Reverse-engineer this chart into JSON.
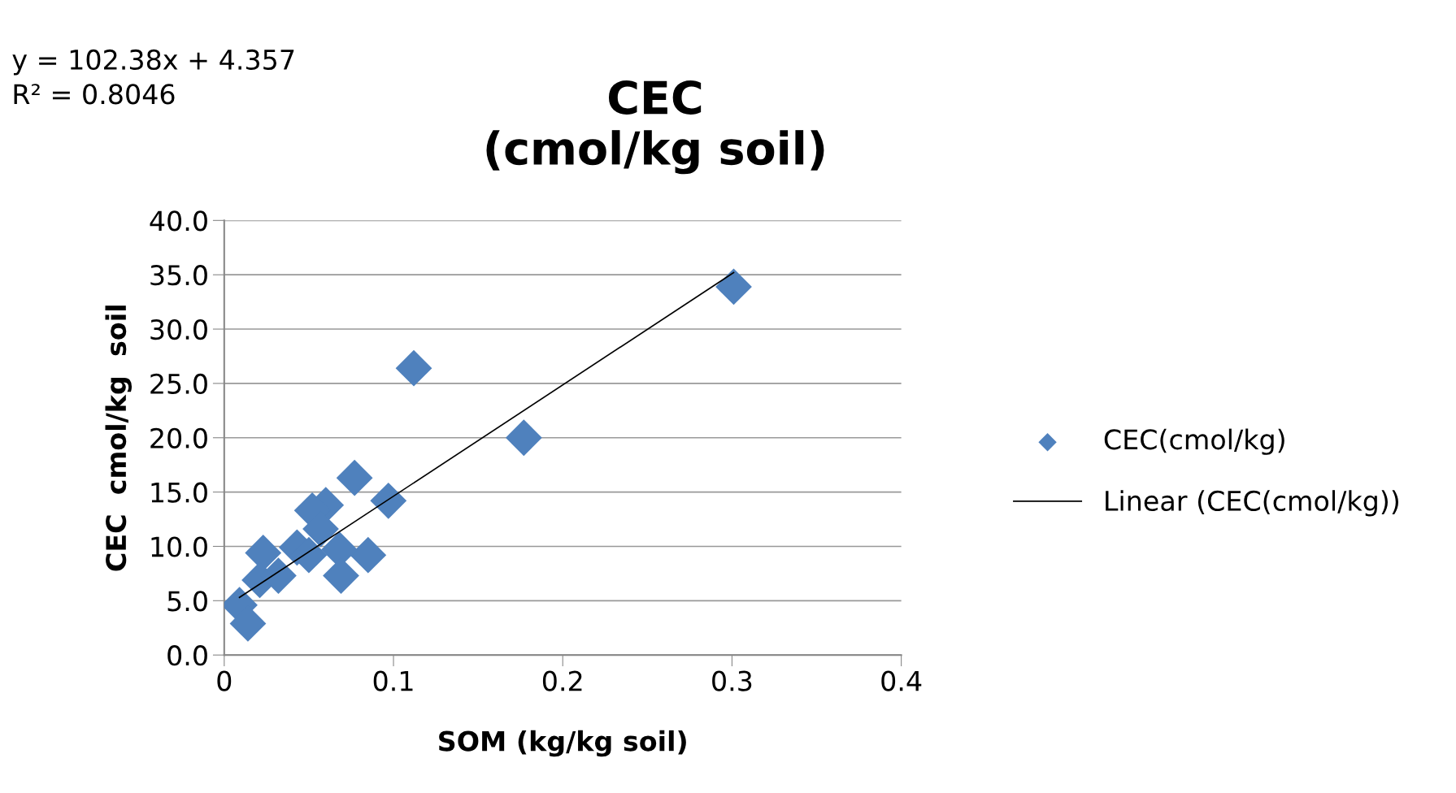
{
  "chart_data": {
    "type": "scatter",
    "title": "CEC\n(cmol/kg soil)",
    "xlabel": "SOM (kg/kg soil)",
    "ylabel": "CEC  cmol/kg  soil",
    "annotations": [
      "y = 102.38x + 4.357\nR² = 0.8046"
    ],
    "series": [
      {
        "name": "CEC(cmol/kg)",
        "color": "#4f81bd",
        "marker": "diamond",
        "x": [
          0.301,
          0.112,
          0.177,
          0.077,
          0.097,
          0.06,
          0.052,
          0.057,
          0.085,
          0.068,
          0.069,
          0.023,
          0.043,
          0.05,
          0.035,
          0.026,
          0.018,
          0.009,
          0.014,
          0.021,
          0.032
        ],
        "values": [
          33.9,
          26.4,
          20.0,
          16.3,
          14.2,
          13.8,
          13.3,
          11.6,
          9.2,
          9.7,
          7.3,
          9.4,
          9.9,
          9.2,
          null,
          null,
          null,
          4.6,
          2.9,
          6.9,
          7.3
        ]
      },
      {
        "name": "Linear (CEC(cmol/kg))",
        "type": "line",
        "color": "#000000",
        "marker": "none",
        "line_style": "solid",
        "x": [
          0.009,
          0.301
        ],
        "values": [
          5.3,
          35.2
        ]
      }
    ],
    "xlim": [
      0,
      0.4
    ],
    "xticks": [
      0,
      0.1,
      0.2,
      0.3,
      0.4
    ],
    "ylim": [
      0,
      40
    ],
    "yticks": [
      {
        "value": 0,
        "label": "0.0"
      },
      {
        "value": 5,
        "label": "5.0"
      },
      {
        "value": 10,
        "label": "10.0"
      },
      {
        "value": 15,
        "label": "15.0"
      },
      {
        "value": 20,
        "label": "20.0"
      },
      {
        "value": 25,
        "label": "25.0"
      },
      {
        "value": 30,
        "label": "30.0"
      },
      {
        "value": 35,
        "label": "35.0"
      },
      {
        "value": 40,
        "label": "40.0"
      }
    ],
    "grid": "y",
    "legend": "right"
  }
}
